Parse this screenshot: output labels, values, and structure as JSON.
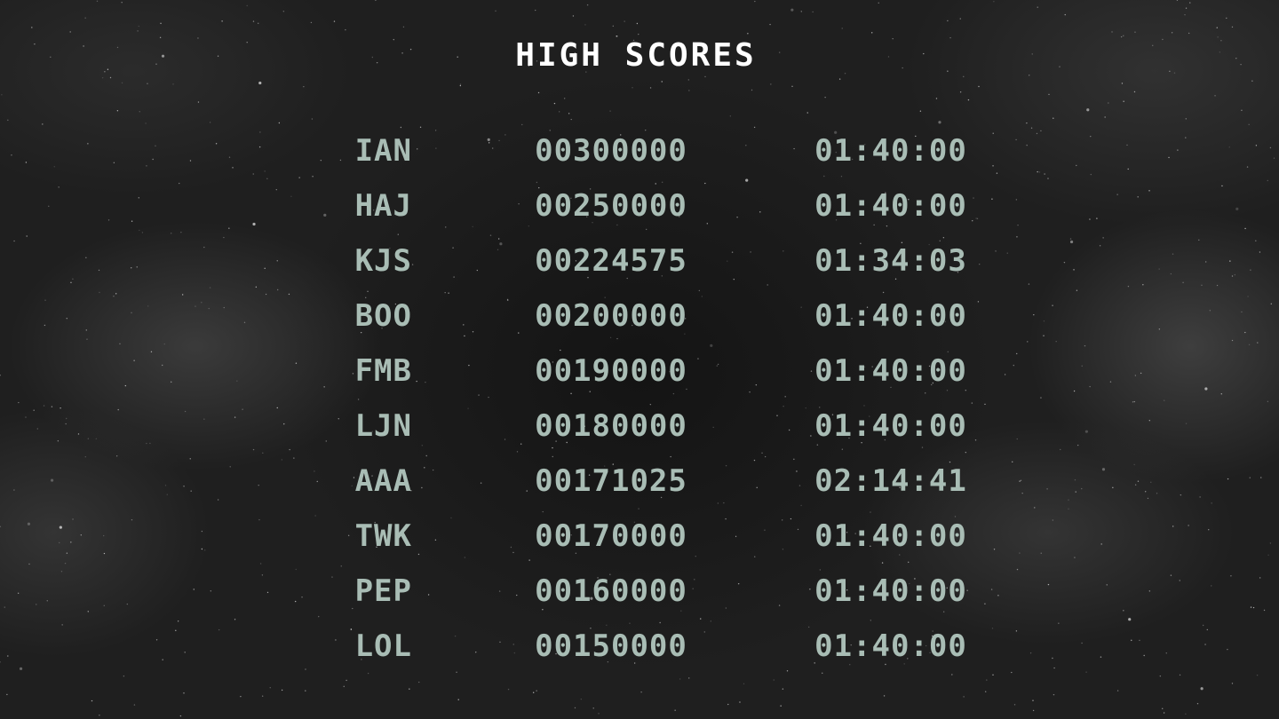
{
  "title": "HIGH SCORES",
  "colors": {
    "text": "#a9bdb5",
    "title": "#ffffff",
    "background": "#1a1a1a"
  },
  "scores": [
    {
      "name": "IAN",
      "score": "00300000",
      "time": "01:40:00"
    },
    {
      "name": "HAJ",
      "score": "00250000",
      "time": "01:40:00"
    },
    {
      "name": "KJS",
      "score": "00224575",
      "time": "01:34:03"
    },
    {
      "name": "BOO",
      "score": "00200000",
      "time": "01:40:00"
    },
    {
      "name": "FMB",
      "score": "00190000",
      "time": "01:40:00"
    },
    {
      "name": "LJN",
      "score": "00180000",
      "time": "01:40:00"
    },
    {
      "name": "AAA",
      "score": "00171025",
      "time": "02:14:41"
    },
    {
      "name": "TWK",
      "score": "00170000",
      "time": "01:40:00"
    },
    {
      "name": "PEP",
      "score": "00160000",
      "time": "01:40:00"
    },
    {
      "name": "LOL",
      "score": "00150000",
      "time": "01:40:00"
    }
  ]
}
